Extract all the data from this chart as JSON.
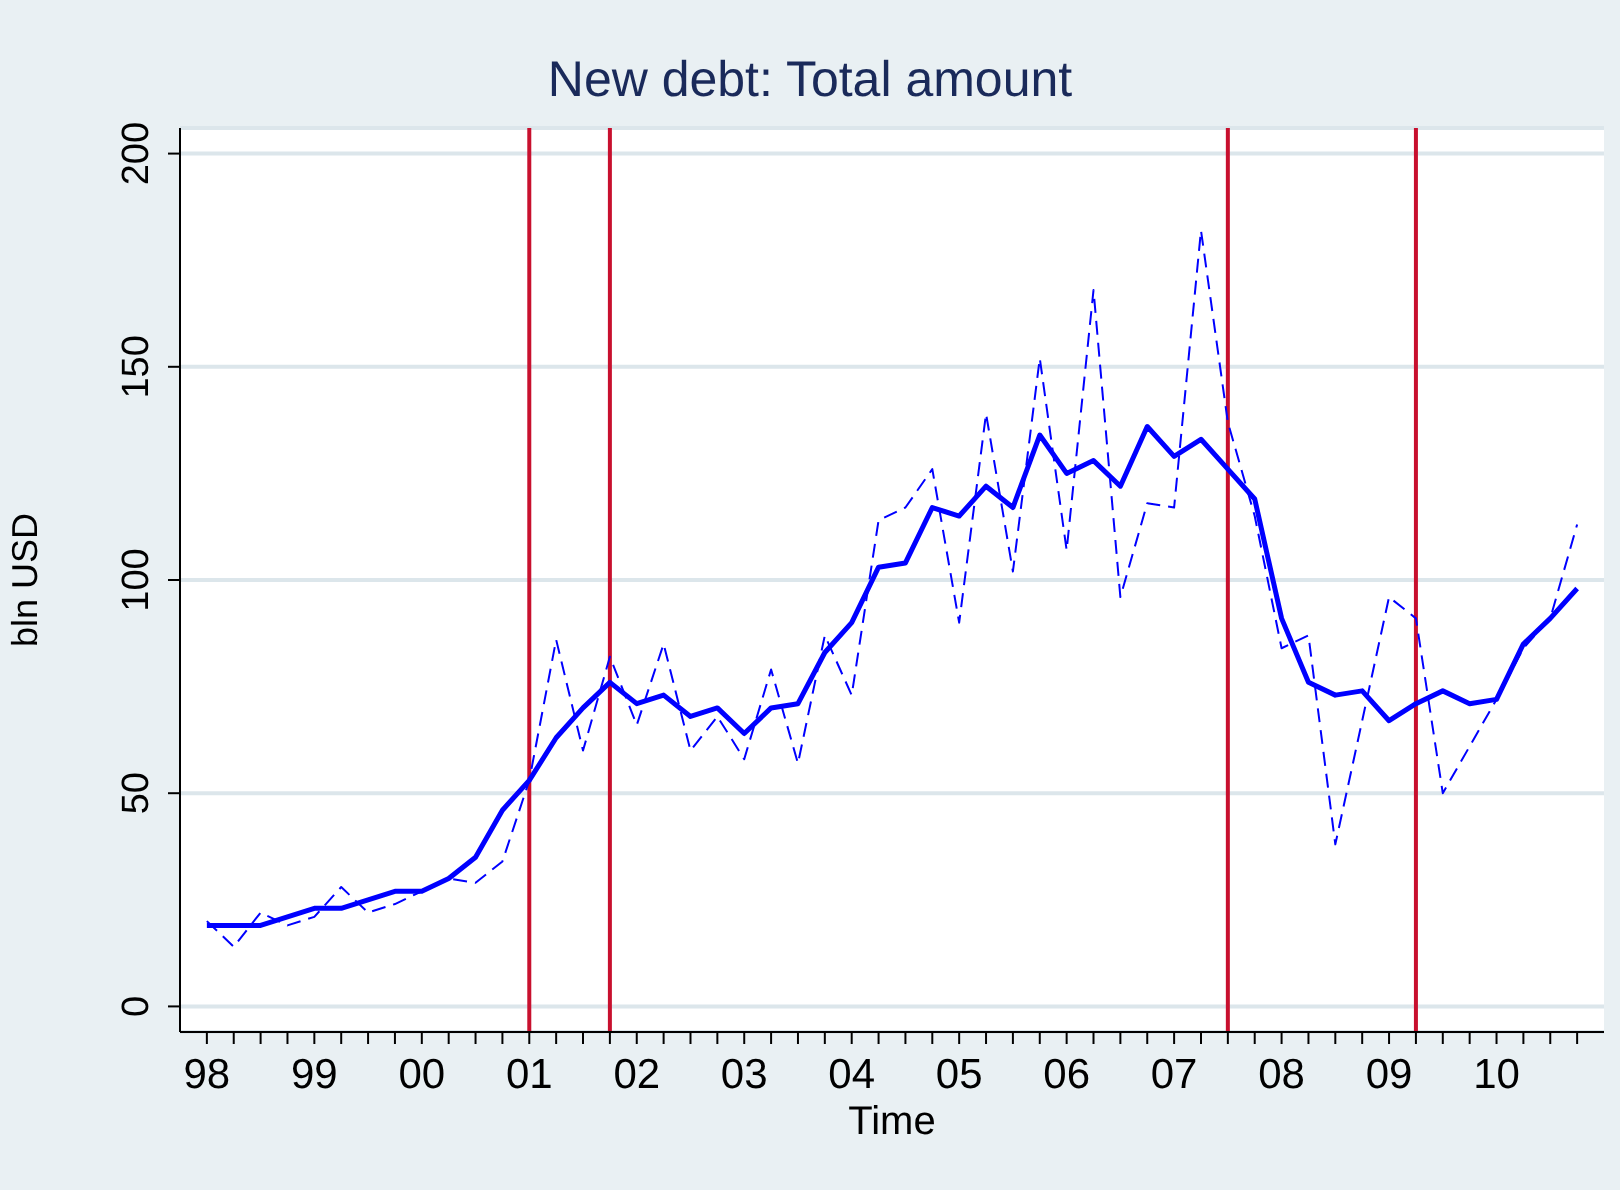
{
  "chart_data": {
    "type": "line",
    "title": "New debt: Total amount",
    "xlabel": "Time",
    "ylabel": "bln USD",
    "x": [
      1998,
      1998.25,
      1998.5,
      1998.75,
      1999,
      1999.25,
      1999.5,
      1999.75,
      2000,
      2000.25,
      2000.5,
      2000.75,
      2001,
      2001.25,
      2001.5,
      2001.75,
      2002,
      2002.25,
      2002.5,
      2002.75,
      2003,
      2003.25,
      2003.5,
      2003.75,
      2004,
      2004.25,
      2004.5,
      2004.75,
      2005,
      2005.25,
      2005.5,
      2005.75,
      2006,
      2006.25,
      2006.5,
      2006.75,
      2007,
      2007.25,
      2007.5,
      2007.75,
      2008,
      2008.25,
      2008.5,
      2008.75,
      2009,
      2009.25,
      2009.5,
      2009.75,
      2010,
      2010.25,
      2010.5,
      2010.75
    ],
    "series": [
      {
        "color": "#0000ff",
        "line_style": "solid",
        "values": [
          19,
          19,
          19,
          21,
          23,
          23,
          25,
          27,
          27,
          30,
          35,
          46,
          53,
          63,
          70,
          76,
          71,
          73,
          68,
          70,
          64,
          70,
          71,
          83,
          90,
          103,
          104,
          117,
          115,
          122,
          117,
          134,
          125,
          128,
          122,
          136,
          129,
          133,
          126,
          119,
          91,
          76,
          73,
          74,
          67,
          71,
          74,
          71,
          72,
          85,
          91,
          98
        ]
      },
      {
        "color": "#0000ff",
        "line_style": "dashed",
        "values": [
          20,
          14,
          22,
          19,
          21,
          28,
          22,
          24,
          27,
          30,
          29,
          34,
          53,
          86,
          60,
          82,
          66,
          85,
          60,
          68,
          58,
          79,
          57,
          87,
          73,
          114,
          117,
          126,
          90,
          139,
          102,
          152,
          107,
          168,
          96,
          118,
          117,
          182,
          137,
          115,
          84,
          87,
          38,
          67,
          96,
          91,
          50,
          61,
          72,
          84,
          91,
          113
        ]
      }
    ],
    "xlim": [
      1997.75,
      2011
    ],
    "xticks": [
      {
        "value": 1998,
        "label": "98"
      },
      {
        "value": 1998.25,
        "label": null
      },
      {
        "value": 1998.5,
        "label": null
      },
      {
        "value": 1998.75,
        "label": null
      },
      {
        "value": 1999,
        "label": "99"
      },
      {
        "value": 1999.25,
        "label": null
      },
      {
        "value": 1999.5,
        "label": null
      },
      {
        "value": 1999.75,
        "label": null
      },
      {
        "value": 2000,
        "label": "00"
      },
      {
        "value": 2000.25,
        "label": null
      },
      {
        "value": 2000.5,
        "label": null
      },
      {
        "value": 2000.75,
        "label": null
      },
      {
        "value": 2001,
        "label": "01"
      },
      {
        "value": 2001.25,
        "label": null
      },
      {
        "value": 2001.5,
        "label": null
      },
      {
        "value": 2001.75,
        "label": null
      },
      {
        "value": 2002,
        "label": "02"
      },
      {
        "value": 2002.25,
        "label": null
      },
      {
        "value": 2002.5,
        "label": null
      },
      {
        "value": 2002.75,
        "label": null
      },
      {
        "value": 2003,
        "label": "03"
      },
      {
        "value": 2003.25,
        "label": null
      },
      {
        "value": 2003.5,
        "label": null
      },
      {
        "value": 2003.75,
        "label": null
      },
      {
        "value": 2004,
        "label": "04"
      },
      {
        "value": 2004.25,
        "label": null
      },
      {
        "value": 2004.5,
        "label": null
      },
      {
        "value": 2004.75,
        "label": null
      },
      {
        "value": 2005,
        "label": "05"
      },
      {
        "value": 2005.25,
        "label": null
      },
      {
        "value": 2005.5,
        "label": null
      },
      {
        "value": 2005.75,
        "label": null
      },
      {
        "value": 2006,
        "label": "06"
      },
      {
        "value": 2006.25,
        "label": null
      },
      {
        "value": 2006.5,
        "label": null
      },
      {
        "value": 2006.75,
        "label": null
      },
      {
        "value": 2007,
        "label": "07"
      },
      {
        "value": 2007.25,
        "label": null
      },
      {
        "value": 2007.5,
        "label": null
      },
      {
        "value": 2007.75,
        "label": null
      },
      {
        "value": 2008,
        "label": "08"
      },
      {
        "value": 2008.25,
        "label": null
      },
      {
        "value": 2008.5,
        "label": null
      },
      {
        "value": 2008.75,
        "label": null
      },
      {
        "value": 2009,
        "label": "09"
      },
      {
        "value": 2009.25,
        "label": null
      },
      {
        "value": 2009.5,
        "label": null
      },
      {
        "value": 2009.75,
        "label": null
      },
      {
        "value": 2010,
        "label": "10"
      },
      {
        "value": 2010.25,
        "label": null
      },
      {
        "value": 2010.5,
        "label": null
      },
      {
        "value": 2010.75,
        "label": null
      }
    ],
    "ylim": [
      -6,
      206
    ],
    "yticks": [
      0,
      50,
      100,
      150,
      200
    ],
    "grid": "y",
    "marker": "none",
    "ref_lines": [
      {
        "axis": "x",
        "value": 2001,
        "color": "#c8102e"
      },
      {
        "axis": "x",
        "value": 2001.75,
        "color": "#c8102e"
      },
      {
        "axis": "x",
        "value": 2007.5,
        "color": "#c8102e"
      },
      {
        "axis": "x",
        "value": 2009.25,
        "color": "#c8102e"
      }
    ]
  }
}
